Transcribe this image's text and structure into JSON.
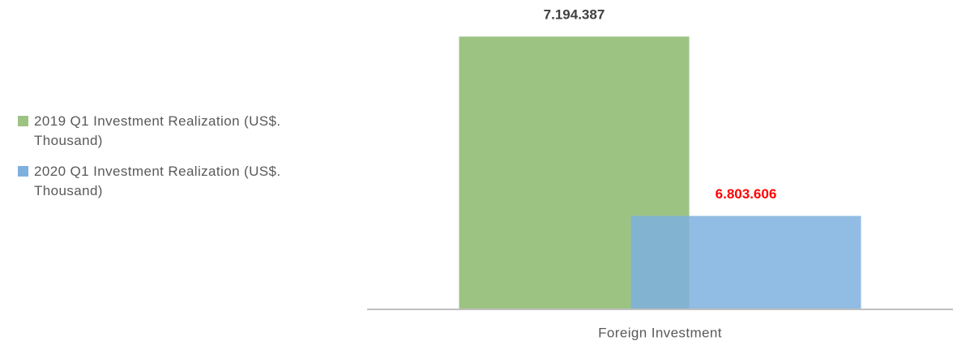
{
  "chart_data": {
    "type": "bar",
    "categories": [
      "Foreign Investment"
    ],
    "series": [
      {
        "name": "2019 Q1 Investment Realization (US$. Thousand)",
        "color": "#9dc383",
        "label_color": "#404040",
        "values": [
          7194387
        ],
        "value_labels": [
          "7.194.387"
        ]
      },
      {
        "name": "2020 Q1 Investment Realization (US$. Thousand)",
        "color": "#7eb0de",
        "label_color": "#ff0000",
        "values": [
          6803606
        ],
        "value_labels": [
          "6.803.606"
        ]
      }
    ],
    "ylim": [
      6600000,
      7200000
    ],
    "legend": "left"
  }
}
